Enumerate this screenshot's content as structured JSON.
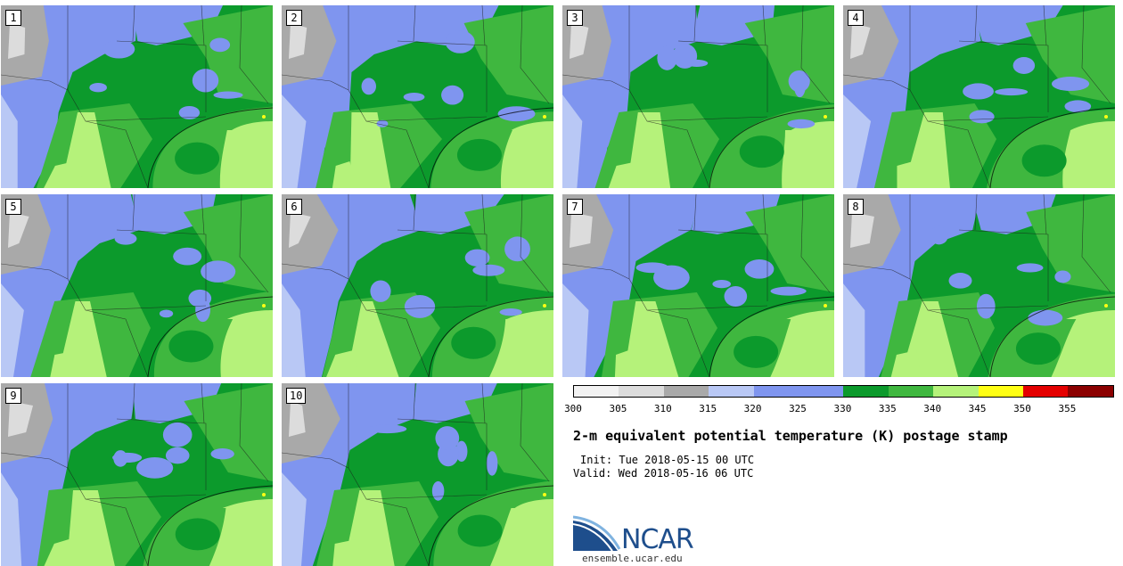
{
  "panels": [
    {
      "label": "1"
    },
    {
      "label": "2"
    },
    {
      "label": "3"
    },
    {
      "label": "4"
    },
    {
      "label": "5"
    },
    {
      "label": "6"
    },
    {
      "label": "7"
    },
    {
      "label": "8"
    },
    {
      "label": "9"
    },
    {
      "label": "10"
    }
  ],
  "colorbar": {
    "colors": [
      "#f2f2f2",
      "#dcdcdc",
      "#a9a9a9",
      "#b9c8f5",
      "#7f95ef",
      "#7f95ef",
      "#0c9a2c",
      "#3fb73f",
      "#b5f27a",
      "#ffff14",
      "#e40000",
      "#8b0000"
    ],
    "ticks": [
      "300",
      "305",
      "310",
      "315",
      "320",
      "325",
      "330",
      "335",
      "340",
      "345",
      "350",
      "355"
    ]
  },
  "title": "2-m equivalent potential temperature (K) postage stamp",
  "init": "Init: Tue 2018-05-15 00 UTC",
  "valid": "Valid: Wed 2018-05-16 06 UTC",
  "logo": {
    "text": "NCAR",
    "site": "ensemble.ucar.edu"
  },
  "colors": {
    "gray": "#a9a9a9",
    "lightgray": "#dcdcdc",
    "purple": "#7f95ef",
    "lightpurple": "#b9c8f5",
    "darkgreen": "#0c9a2c",
    "green": "#3fb73f",
    "lightgreen": "#b5f27a",
    "yellow": "#ffff14"
  }
}
